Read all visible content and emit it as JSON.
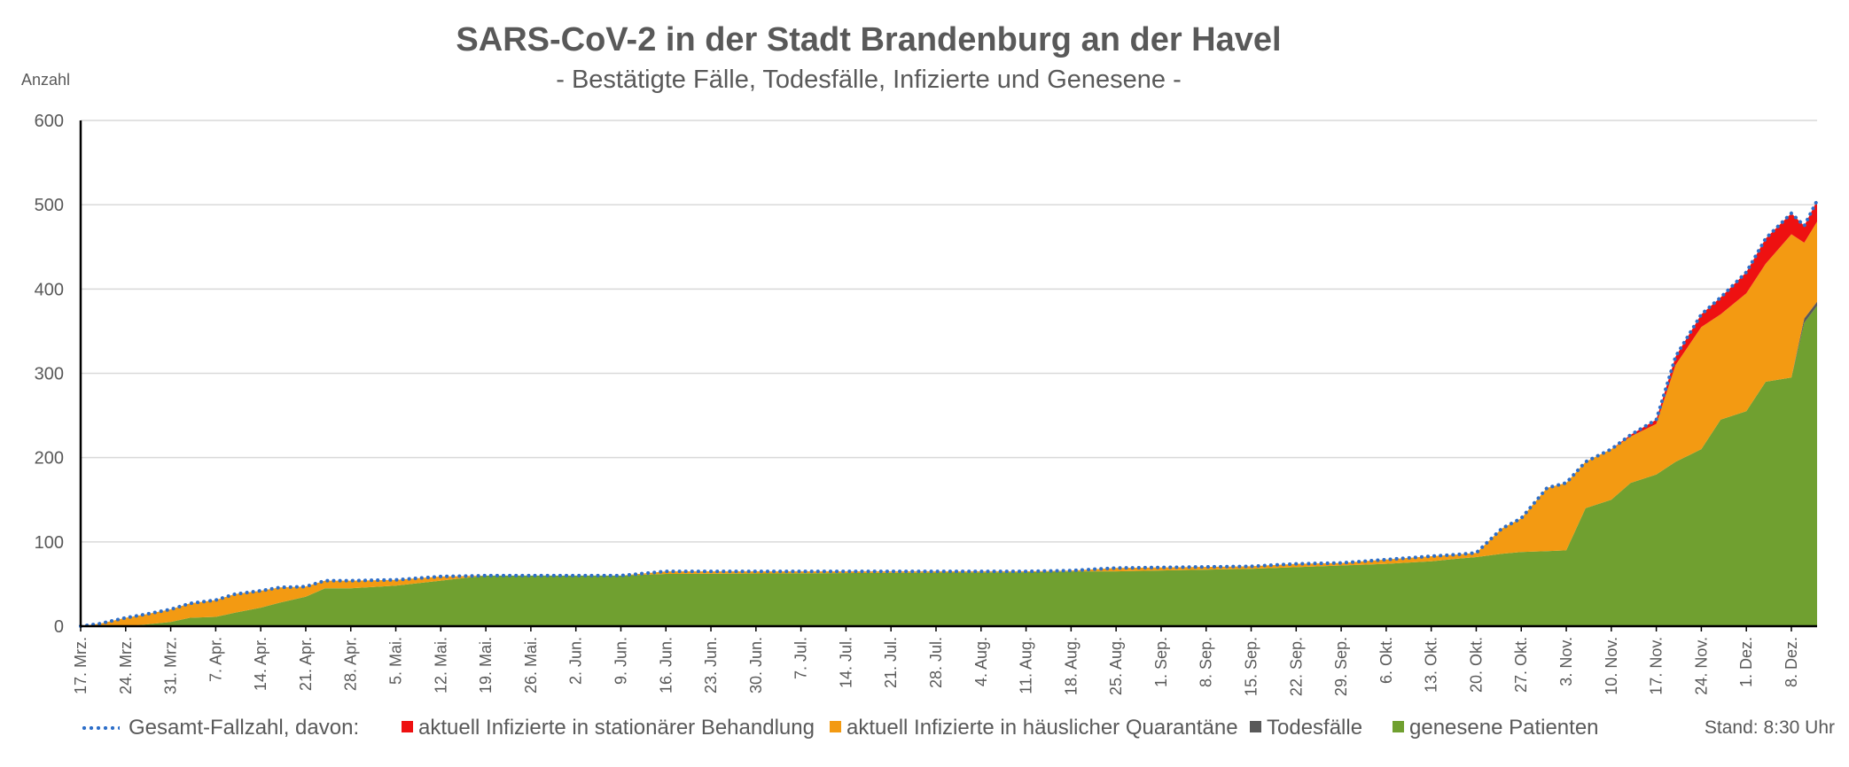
{
  "chart_data": {
    "type": "area",
    "title": "SARS-CoV-2 in der Stadt Brandenburg an der Havel",
    "subtitle": "- Bestätigte Fälle, Todesfälle, Infizierte und Genesene -",
    "ylabel": "Anzahl",
    "ylim": [
      0,
      600
    ],
    "yticks": [
      0,
      100,
      200,
      300,
      400,
      500,
      600
    ],
    "grid": true,
    "legend_position": "bottom",
    "x_start": "2020-03-17",
    "x_end": "2020-12-12",
    "xtick_labels": [
      "17. Mrz.",
      "24. Mrz.",
      "31. Mrz.",
      "7. Apr.",
      "14. Apr.",
      "21. Apr.",
      "28. Apr.",
      "5. Mai.",
      "12. Mai.",
      "19. Mai.",
      "26. Mai.",
      "2. Jun.",
      "9. Jun.",
      "16. Jun.",
      "23. Jun.",
      "30. Jun.",
      "7. Jul.",
      "14. Jul.",
      "21. Jul.",
      "28. Jul.",
      "4. Aug.",
      "11. Aug.",
      "18. Aug.",
      "25. Aug.",
      "1. Sep.",
      "8. Sep.",
      "15. Sep.",
      "22. Sep.",
      "29. Sep.",
      "6. Okt.",
      "13. Okt.",
      "20. Okt.",
      "27. Okt.",
      "3. Nov.",
      "10. Nov.",
      "17. Nov.",
      "24. Nov.",
      "1. Dez.",
      "8. Dez."
    ],
    "x": [
      "2020-03-17",
      "2020-03-20",
      "2020-03-24",
      "2020-03-27",
      "2020-03-31",
      "2020-04-03",
      "2020-04-07",
      "2020-04-10",
      "2020-04-14",
      "2020-04-17",
      "2020-04-21",
      "2020-04-24",
      "2020-04-28",
      "2020-05-05",
      "2020-05-12",
      "2020-05-19",
      "2020-06-09",
      "2020-06-16",
      "2020-08-11",
      "2020-08-18",
      "2020-08-25",
      "2020-09-15",
      "2020-09-22",
      "2020-09-29",
      "2020-10-06",
      "2020-10-13",
      "2020-10-17",
      "2020-10-20",
      "2020-10-24",
      "2020-10-27",
      "2020-10-31",
      "2020-11-03",
      "2020-11-06",
      "2020-11-10",
      "2020-11-13",
      "2020-11-17",
      "2020-11-20",
      "2020-11-24",
      "2020-11-27",
      "2020-12-01",
      "2020-12-04",
      "2020-12-08",
      "2020-12-10",
      "2020-12-12"
    ],
    "series": [
      {
        "name": "genesene Patienten",
        "color": "#70a030",
        "values": [
          0,
          0,
          0,
          2,
          5,
          10,
          11,
          16,
          22,
          28,
          35,
          45,
          45,
          48,
          54,
          60,
          60,
          62,
          64,
          65,
          65,
          68,
          70,
          72,
          74,
          77,
          80,
          82,
          86,
          88,
          89,
          90,
          140,
          150,
          170,
          180,
          195,
          210,
          245,
          255,
          290,
          295,
          360,
          380
        ]
      },
      {
        "name": "Todesfälle",
        "color": "#595959",
        "values": [
          0,
          0,
          0,
          0,
          0,
          0,
          0,
          0,
          0,
          0,
          0,
          0,
          0,
          0,
          0,
          0,
          0,
          0,
          0,
          0,
          0,
          0,
          0,
          0,
          0,
          0,
          0,
          0,
          0,
          0,
          0,
          0,
          0,
          0,
          0,
          0,
          0,
          0,
          0,
          0,
          0,
          0,
          5,
          5
        ]
      },
      {
        "name": "aktuell Infizierte in häuslicher Quarantäne",
        "color": "#f39a12",
        "values": [
          0,
          3,
          10,
          12,
          15,
          17,
          20,
          22,
          20,
          18,
          12,
          9,
          9,
          7,
          5,
          0,
          0,
          3,
          1,
          1,
          4,
          3,
          4,
          3,
          5,
          6,
          5,
          5,
          30,
          40,
          75,
          80,
          55,
          60,
          55,
          60,
          115,
          145,
          125,
          140,
          140,
          170,
          90,
          95
        ]
      },
      {
        "name": "aktuell Infizierte in stationärer Behandlung",
        "color": "#ee1111",
        "values": [
          0,
          0,
          0,
          0,
          0,
          0,
          0,
          0,
          0,
          0,
          0,
          0,
          0,
          0,
          0,
          0,
          0,
          0,
          0,
          0,
          0,
          0,
          0,
          0,
          0,
          0,
          0,
          0,
          0,
          0,
          0,
          0,
          0,
          0,
          2,
          5,
          10,
          15,
          20,
          25,
          30,
          25,
          20,
          25
        ]
      }
    ],
    "total_series": {
      "name": "Gesamt-Fallzahl, davon:",
      "color": "#2e6fc9",
      "values": [
        0,
        3,
        10,
        14,
        20,
        27,
        31,
        38,
        42,
        46,
        47,
        54,
        54,
        55,
        59,
        60,
        60,
        65,
        65,
        66,
        69,
        71,
        74,
        75,
        79,
        83,
        85,
        87,
        116,
        128,
        164,
        170,
        195,
        210,
        227,
        245,
        320,
        370,
        390,
        420,
        460,
        490,
        475,
        505
      ]
    }
  },
  "legend": {
    "total_label": "Gesamt-Fallzahl, davon:",
    "stationaer_label": "aktuell Infizierte in stationärer Behandlung",
    "quarantaene_label": "aktuell Infizierte in häuslicher Quarantäne",
    "tod_label": "Todesfälle",
    "genesen_label": "genesene Patienten"
  },
  "stand": "Stand: 8:30 Uhr"
}
